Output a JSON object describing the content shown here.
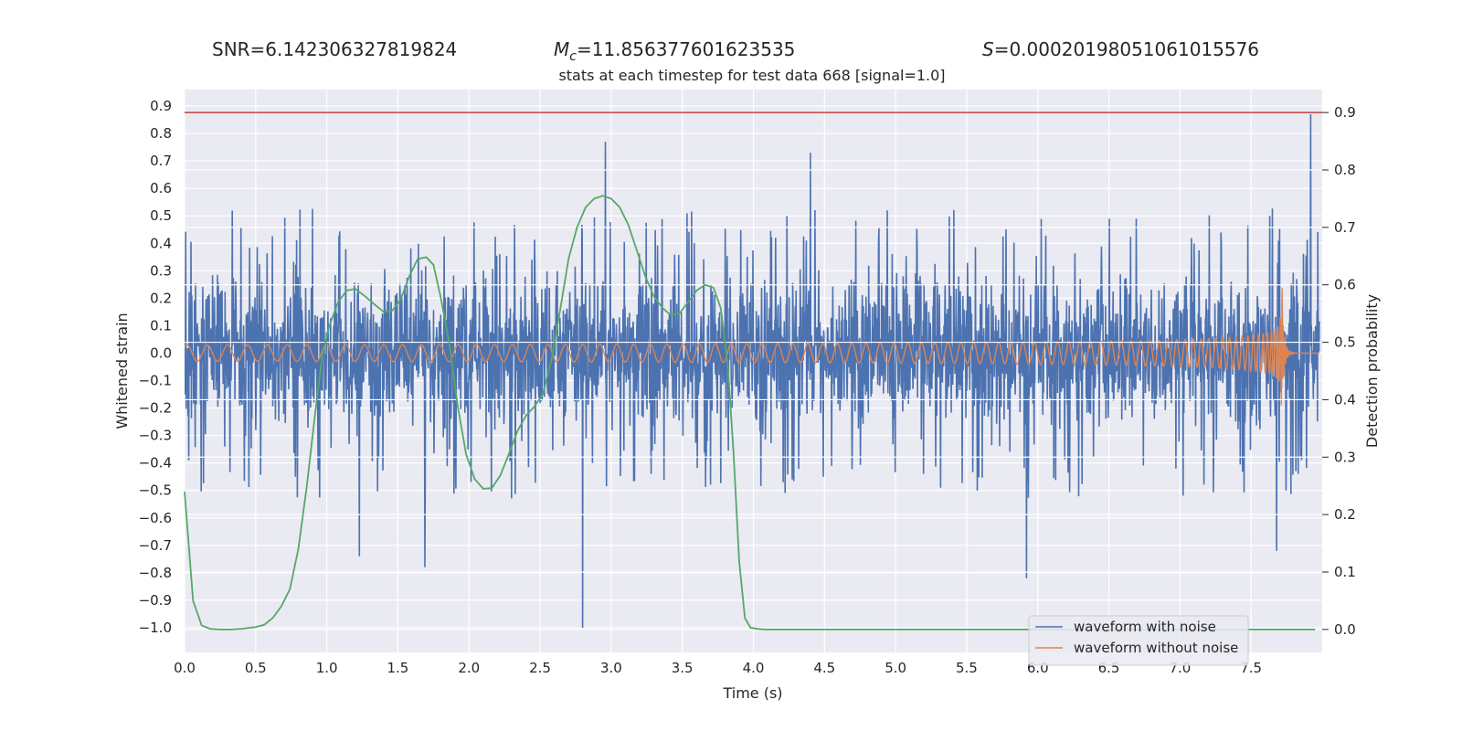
{
  "header": {
    "snr": "SNR=6.142306327819824",
    "mc_symbol": "M",
    "mc_sub": "c",
    "mc_value": "=11.856377601623535",
    "s_symbol": "S",
    "s_value": "=0.00020198051061015576"
  },
  "chart_data": {
    "type": "line",
    "title": "stats at each timestep for test data 668 [signal=1.0]",
    "xlabel": "Time (s)",
    "ylabel": "Whitened strain",
    "y2label": "Detection probability",
    "xlim": [
      0.0,
      8.0
    ],
    "ylim": [
      -1.09,
      0.96
    ],
    "y2lim": [
      -0.04,
      0.94
    ],
    "x_ticks": [
      "0.0",
      "0.5",
      "1.0",
      "1.5",
      "2.0",
      "2.5",
      "3.0",
      "3.5",
      "4.0",
      "4.5",
      "5.0",
      "5.5",
      "6.0",
      "6.5",
      "7.0",
      "7.5"
    ],
    "y_ticks": [
      "0.9",
      "0.8",
      "0.7",
      "0.6",
      "0.5",
      "0.4",
      "0.3",
      "0.2",
      "0.1",
      "0.0",
      "-0.1",
      "-0.2",
      "-0.3",
      "-0.4",
      "-0.5",
      "-0.6",
      "-0.7",
      "-0.8",
      "-0.9",
      "-1.0"
    ],
    "y_tick_values": [
      0.9,
      0.8,
      0.7,
      0.6,
      0.5,
      0.4,
      0.3,
      0.2,
      0.1,
      0.0,
      -0.1,
      -0.2,
      -0.3,
      -0.4,
      -0.5,
      -0.6,
      -0.7,
      -0.8,
      -0.9,
      -1.0
    ],
    "y2_ticks": [
      "0.9",
      "0.8",
      "0.7",
      "0.6",
      "0.5",
      "0.4",
      "0.3",
      "0.2",
      "0.1",
      "0.0"
    ],
    "y2_tick_values": [
      0.9,
      0.8,
      0.7,
      0.6,
      0.5,
      0.4,
      0.3,
      0.2,
      0.1,
      0.0
    ],
    "grid": true,
    "legend": "lower-right",
    "threshold": {
      "axis": "right",
      "value": 0.9,
      "color": "#c44e52"
    },
    "series": [
      {
        "name": "waveform with noise",
        "color": "#4c72b0",
        "axis": "left",
        "kind": "noise",
        "envelope_typical": 0.45,
        "notable_peaks": [
          {
            "x": 2.8,
            "y": -1.0
          },
          {
            "x": 2.96,
            "y": 0.77
          },
          {
            "x": 4.4,
            "y": 0.73
          },
          {
            "x": 1.69,
            "y": -0.78
          },
          {
            "x": 1.23,
            "y": -0.74
          },
          {
            "x": 5.92,
            "y": -0.82
          },
          {
            "x": 7.92,
            "y": 0.87
          },
          {
            "x": 7.68,
            "y": -0.72
          }
        ]
      },
      {
        "name": "waveform without noise",
        "color": "#dd8452",
        "axis": "left",
        "kind": "chirp",
        "merger_time": 7.72,
        "peak_amplitude": 0.18
      },
      {
        "name": "",
        "color": "#55a868",
        "axis": "right",
        "kind": "probability",
        "x": [
          0.0,
          0.06,
          0.12,
          0.18,
          0.25,
          0.32,
          0.4,
          0.5,
          0.56,
          0.62,
          0.68,
          0.74,
          0.8,
          0.86,
          0.92,
          0.97,
          1.02,
          1.08,
          1.14,
          1.2,
          1.27,
          1.34,
          1.4,
          1.46,
          1.52,
          1.58,
          1.64,
          1.7,
          1.75,
          1.8,
          1.86,
          1.92,
          1.98,
          2.04,
          2.1,
          2.16,
          2.22,
          2.28,
          2.34,
          2.4,
          2.46,
          2.52,
          2.58,
          2.64,
          2.7,
          2.76,
          2.82,
          2.88,
          2.94,
          3.0,
          3.06,
          3.12,
          3.18,
          3.24,
          3.3,
          3.36,
          3.42,
          3.48,
          3.54,
          3.6,
          3.66,
          3.72,
          3.77,
          3.82,
          3.86,
          3.9,
          3.94,
          3.98,
          4.03,
          4.08,
          4.2,
          5.0,
          6.0,
          7.0,
          7.95
        ],
        "y": [
          0.24,
          0.05,
          0.007,
          0.001,
          0.0,
          0.0,
          0.001,
          0.004,
          0.008,
          0.02,
          0.04,
          0.07,
          0.14,
          0.25,
          0.38,
          0.48,
          0.53,
          0.57,
          0.59,
          0.593,
          0.58,
          0.565,
          0.553,
          0.555,
          0.575,
          0.615,
          0.645,
          0.648,
          0.635,
          0.58,
          0.5,
          0.39,
          0.305,
          0.262,
          0.245,
          0.246,
          0.268,
          0.305,
          0.345,
          0.372,
          0.388,
          0.41,
          0.47,
          0.555,
          0.645,
          0.7,
          0.735,
          0.75,
          0.755,
          0.75,
          0.735,
          0.705,
          0.66,
          0.615,
          0.58,
          0.56,
          0.547,
          0.55,
          0.57,
          0.59,
          0.6,
          0.595,
          0.56,
          0.46,
          0.31,
          0.12,
          0.02,
          0.003,
          0.001,
          0.0,
          0.0,
          0.0,
          0.0,
          0.0,
          0.0
        ]
      }
    ]
  }
}
